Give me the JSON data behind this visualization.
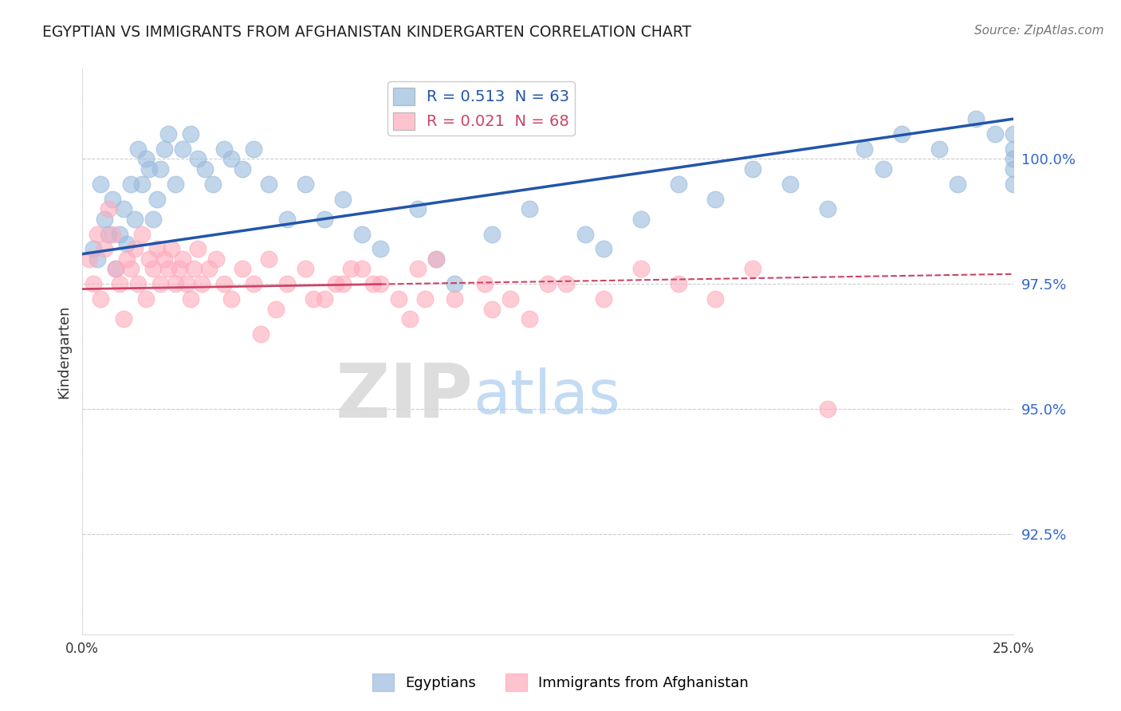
{
  "title": "EGYPTIAN VS IMMIGRANTS FROM AFGHANISTAN KINDERGARTEN CORRELATION CHART",
  "source": "Source: ZipAtlas.com",
  "ylabel": "Kindergarten",
  "xmin": 0.0,
  "xmax": 25.0,
  "ymin": 90.5,
  "ymax": 101.8,
  "yticks": [
    92.5,
    95.0,
    97.5,
    100.0
  ],
  "ytick_labels": [
    "92.5%",
    "95.0%",
    "97.5%",
    "100.0%"
  ],
  "grid_color": "#cccccc",
  "blue_color": "#99bbdd",
  "pink_color": "#ffaabb",
  "blue_line_color": "#2255aa",
  "pink_line_color": "#cc4466",
  "R_blue": 0.513,
  "N_blue": 63,
  "R_pink": 0.021,
  "N_pink": 68,
  "legend_label_blue": "Egyptians",
  "legend_label_pink": "Immigrants from Afghanistan",
  "blue_line_y0": 98.1,
  "blue_line_y1": 100.8,
  "pink_line_y0": 97.4,
  "pink_line_y1": 97.7,
  "blue_scatter_x": [
    0.3,
    0.4,
    0.5,
    0.6,
    0.7,
    0.8,
    0.9,
    1.0,
    1.1,
    1.2,
    1.3,
    1.4,
    1.5,
    1.6,
    1.7,
    1.8,
    1.9,
    2.0,
    2.1,
    2.2,
    2.3,
    2.5,
    2.7,
    2.9,
    3.1,
    3.3,
    3.5,
    3.8,
    4.0,
    4.3,
    4.6,
    5.0,
    5.5,
    6.0,
    6.5,
    7.0,
    7.5,
    8.0,
    9.0,
    9.5,
    10.0,
    11.0,
    12.0,
    13.5,
    14.0,
    15.0,
    16.0,
    17.0,
    18.0,
    19.0,
    20.0,
    21.0,
    21.5,
    22.0,
    23.0,
    23.5,
    24.0,
    24.5,
    25.0,
    25.0,
    25.0,
    25.0,
    25.0
  ],
  "blue_scatter_y": [
    98.2,
    98.0,
    99.5,
    98.8,
    98.5,
    99.2,
    97.8,
    98.5,
    99.0,
    98.3,
    99.5,
    98.8,
    100.2,
    99.5,
    100.0,
    99.8,
    98.8,
    99.2,
    99.8,
    100.2,
    100.5,
    99.5,
    100.2,
    100.5,
    100.0,
    99.8,
    99.5,
    100.2,
    100.0,
    99.8,
    100.2,
    99.5,
    98.8,
    99.5,
    98.8,
    99.2,
    98.5,
    98.2,
    99.0,
    98.0,
    97.5,
    98.5,
    99.0,
    98.5,
    98.2,
    98.8,
    99.5,
    99.2,
    99.8,
    99.5,
    99.0,
    100.2,
    99.8,
    100.5,
    100.2,
    99.5,
    100.8,
    100.5,
    100.2,
    99.8,
    100.5,
    99.5,
    100.0
  ],
  "pink_scatter_x": [
    0.2,
    0.3,
    0.4,
    0.5,
    0.6,
    0.7,
    0.8,
    0.9,
    1.0,
    1.1,
    1.2,
    1.3,
    1.4,
    1.5,
    1.6,
    1.7,
    1.8,
    1.9,
    2.0,
    2.1,
    2.2,
    2.3,
    2.4,
    2.5,
    2.6,
    2.7,
    2.8,
    2.9,
    3.0,
    3.1,
    3.2,
    3.4,
    3.6,
    3.8,
    4.0,
    4.3,
    4.6,
    5.0,
    5.5,
    6.0,
    6.5,
    7.0,
    7.5,
    8.0,
    8.5,
    9.0,
    9.5,
    10.0,
    11.0,
    12.0,
    13.0,
    14.0,
    15.0,
    16.0,
    17.0,
    18.0,
    20.0,
    12.5,
    8.8,
    9.2,
    10.8,
    11.5,
    7.2,
    6.8,
    5.2,
    4.8,
    6.2,
    7.8
  ],
  "pink_scatter_y": [
    98.0,
    97.5,
    98.5,
    97.2,
    98.2,
    99.0,
    98.5,
    97.8,
    97.5,
    96.8,
    98.0,
    97.8,
    98.2,
    97.5,
    98.5,
    97.2,
    98.0,
    97.8,
    98.2,
    97.5,
    98.0,
    97.8,
    98.2,
    97.5,
    97.8,
    98.0,
    97.5,
    97.2,
    97.8,
    98.2,
    97.5,
    97.8,
    98.0,
    97.5,
    97.2,
    97.8,
    97.5,
    98.0,
    97.5,
    97.8,
    97.2,
    97.5,
    97.8,
    97.5,
    97.2,
    97.8,
    98.0,
    97.2,
    97.0,
    96.8,
    97.5,
    97.2,
    97.8,
    97.5,
    97.2,
    97.8,
    95.0,
    97.5,
    96.8,
    97.2,
    97.5,
    97.2,
    97.8,
    97.5,
    97.0,
    96.5,
    97.2,
    97.5
  ]
}
